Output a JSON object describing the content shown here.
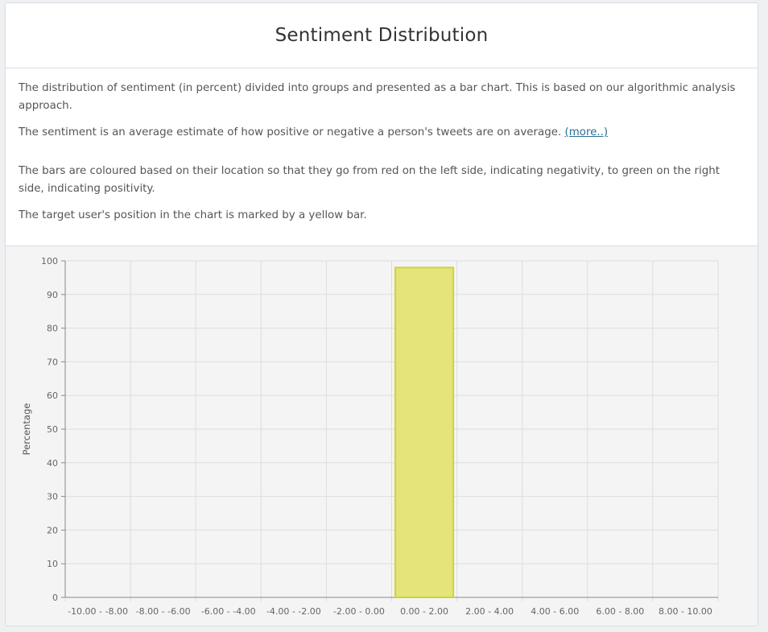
{
  "panel": {
    "title": "Sentiment Distribution",
    "paragraphs": [
      "The distribution of sentiment (in percent) divided into groups and presented as a bar chart. This is based on our algorithmic analysis approach.",
      "The sentiment is an average estimate of how positive or negative a person's tweets are on average. ",
      "The bars are coloured based on their location so that they go from red on the left side, indicating negativity, to green on the right side, indicating positivity.",
      "The target user's position in the chart is marked by a yellow bar."
    ],
    "more_link": "(more..)"
  },
  "colors": {
    "bar_fill": "#e4e47a",
    "bar_stroke": "#cfd23b",
    "grid": "#dddddd",
    "axis": "#888888"
  },
  "chart_data": {
    "type": "bar",
    "categories": [
      "-10.00 - -8.00",
      "-8.00 - -6.00",
      "-6.00 - -4.00",
      "-4.00 - -2.00",
      "-2.00 - 0.00",
      "0.00 - 2.00",
      "2.00 - 4.00",
      "4.00 - 6.00",
      "6.00 - 8.00",
      "8.00 - 10.00"
    ],
    "values": [
      0,
      0,
      0,
      0,
      0,
      98,
      0,
      0,
      0,
      0
    ],
    "ylabel": "Percentage",
    "xlabel": "",
    "ylim": [
      0,
      100
    ],
    "yticks": [
      0,
      10,
      20,
      30,
      40,
      50,
      60,
      70,
      80,
      90,
      100
    ],
    "grid": true,
    "highlight_category": "0.00 - 2.00"
  }
}
